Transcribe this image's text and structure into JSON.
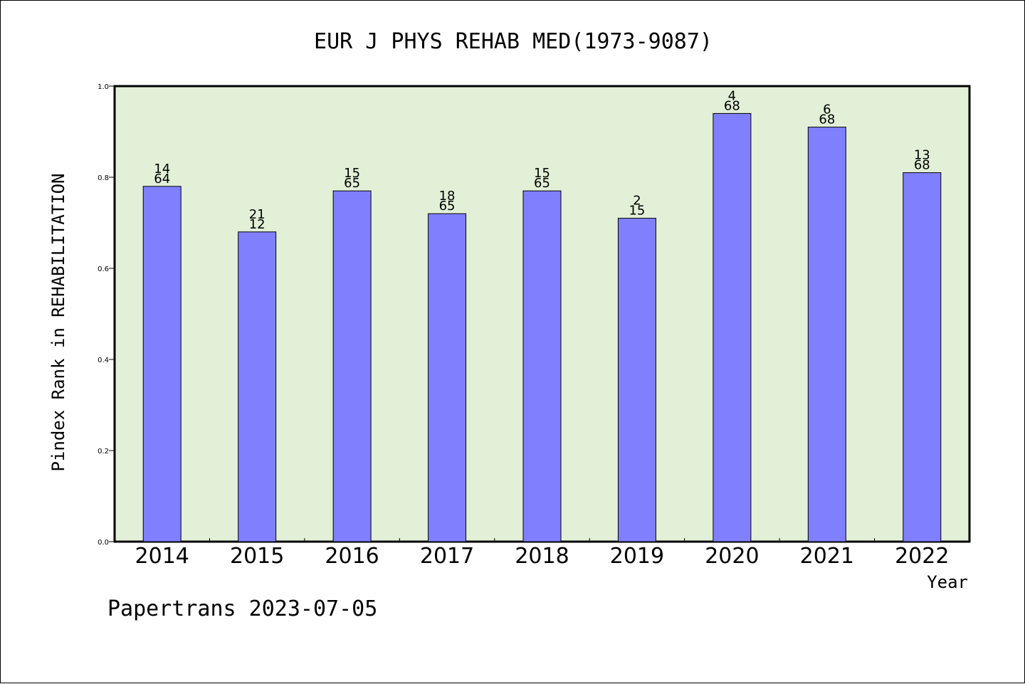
{
  "chart_data": {
    "type": "bar",
    "title": "EUR J PHYS REHAB MED(1973-9087)",
    "ylabel": "Pindex Rank in REHABILITATION",
    "xlabel": "Year",
    "categories": [
      "2014",
      "2015",
      "2016",
      "2017",
      "2018",
      "2019",
      "2020",
      "2021",
      "2022"
    ],
    "values": [
      0.78,
      0.68,
      0.77,
      0.72,
      0.77,
      0.71,
      0.94,
      0.91,
      0.81
    ],
    "rank_labels": [
      "14",
      "21",
      "15",
      "18",
      "15",
      "2",
      "4",
      "6",
      "13"
    ],
    "total_labels": [
      "64",
      "12",
      "65",
      "65",
      "65",
      "15",
      "68",
      "68",
      "68"
    ],
    "ylim": [
      0,
      1.0
    ],
    "yticks": [
      "0.0",
      "0.2",
      "0.4",
      "0.6",
      "0.8",
      "1.0"
    ],
    "grid": false,
    "legend": "none",
    "colors": {
      "bar_fill": "#8080ff",
      "plot_background": "#e2f0d7",
      "axis": "#000000"
    }
  },
  "footer": "Papertrans 2023-07-05"
}
